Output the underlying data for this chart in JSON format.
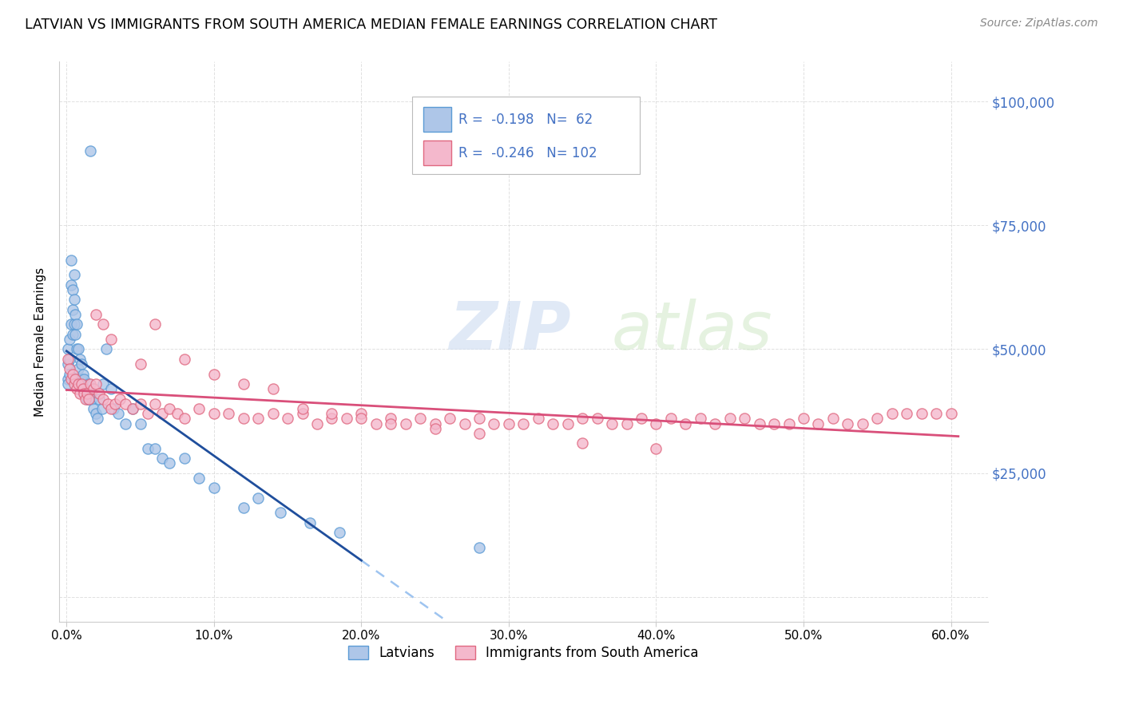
{
  "title": "LATVIAN VS IMMIGRANTS FROM SOUTH AMERICA MEDIAN FEMALE EARNINGS CORRELATION CHART",
  "source": "Source: ZipAtlas.com",
  "ylabel": "Median Female Earnings",
  "x_ticks": [
    0.0,
    0.1,
    0.2,
    0.3,
    0.4,
    0.5,
    0.6
  ],
  "x_tick_labels": [
    "0.0%",
    "10.0%",
    "20.0%",
    "30.0%",
    "40.0%",
    "50.0%",
    "60.0%"
  ],
  "y_ticks": [
    0,
    25000,
    50000,
    75000,
    100000
  ],
  "y_tick_labels": [
    "",
    "$25,000",
    "$50,000",
    "$75,000",
    "$100,000"
  ],
  "xlim": [
    -0.005,
    0.625
  ],
  "ylim": [
    -5000,
    108000
  ],
  "legend_latvians": "Latvians",
  "legend_south_america": "Immigrants from South America",
  "legend_r1_val": "-0.198",
  "legend_n1_val": "62",
  "legend_r2_val": "-0.246",
  "legend_n2_val": "102",
  "latvian_color": "#aec6e8",
  "latvian_edge_color": "#5b9bd5",
  "south_america_color": "#f4b8cc",
  "south_america_edge_color": "#e06880",
  "trend_latvian_color": "#1f4e9c",
  "trend_south_america_color": "#d94f7a",
  "trend_latvian_dashed_color": "#9ec4f0",
  "watermark_zip": "ZIP",
  "watermark_atlas": "atlas",
  "watermark_color_zip": "#c8d8f0",
  "watermark_color_atlas": "#d0e8c8",
  "background_color": "#ffffff",
  "grid_color": "#cccccc",
  "right_tick_color": "#4472c4",
  "latvian_x": [
    0.001,
    0.001,
    0.001,
    0.001,
    0.002,
    0.002,
    0.002,
    0.003,
    0.003,
    0.003,
    0.004,
    0.004,
    0.004,
    0.005,
    0.005,
    0.005,
    0.006,
    0.006,
    0.007,
    0.007,
    0.008,
    0.008,
    0.009,
    0.009,
    0.01,
    0.01,
    0.011,
    0.011,
    0.012,
    0.012,
    0.013,
    0.014,
    0.015,
    0.015,
    0.016,
    0.017,
    0.018,
    0.02,
    0.021,
    0.022,
    0.024,
    0.025,
    0.027,
    0.03,
    0.032,
    0.035,
    0.04,
    0.045,
    0.05,
    0.055,
    0.06,
    0.065,
    0.07,
    0.08,
    0.09,
    0.1,
    0.12,
    0.13,
    0.145,
    0.165,
    0.185,
    0.28
  ],
  "latvian_y": [
    50000,
    47000,
    44000,
    43000,
    52000,
    48000,
    45000,
    68000,
    63000,
    55000,
    62000,
    58000,
    53000,
    65000,
    60000,
    55000,
    57000,
    53000,
    55000,
    50000,
    50000,
    46000,
    48000,
    44000,
    47000,
    44000,
    45000,
    42000,
    44000,
    41000,
    42000,
    40000,
    43000,
    40000,
    41000,
    40000,
    38000,
    37000,
    36000,
    40000,
    38000,
    43000,
    50000,
    42000,
    38000,
    37000,
    35000,
    38000,
    35000,
    30000,
    30000,
    28000,
    27000,
    28000,
    24000,
    22000,
    18000,
    20000,
    17000,
    15000,
    13000,
    10000
  ],
  "latvian_y_outlier": [
    90000
  ],
  "latvian_x_outlier": [
    0.016
  ],
  "south_america_x": [
    0.001,
    0.002,
    0.003,
    0.004,
    0.005,
    0.006,
    0.007,
    0.008,
    0.009,
    0.01,
    0.011,
    0.012,
    0.013,
    0.014,
    0.015,
    0.016,
    0.018,
    0.02,
    0.022,
    0.025,
    0.028,
    0.03,
    0.033,
    0.036,
    0.04,
    0.045,
    0.05,
    0.055,
    0.06,
    0.065,
    0.07,
    0.075,
    0.08,
    0.09,
    0.1,
    0.11,
    0.12,
    0.13,
    0.14,
    0.15,
    0.16,
    0.17,
    0.18,
    0.19,
    0.2,
    0.21,
    0.22,
    0.23,
    0.24,
    0.25,
    0.26,
    0.27,
    0.28,
    0.29,
    0.3,
    0.31,
    0.32,
    0.33,
    0.34,
    0.35,
    0.36,
    0.37,
    0.38,
    0.39,
    0.4,
    0.41,
    0.42,
    0.43,
    0.44,
    0.45,
    0.46,
    0.47,
    0.48,
    0.49,
    0.5,
    0.51,
    0.52,
    0.53,
    0.54,
    0.55,
    0.56,
    0.57,
    0.58,
    0.59,
    0.6,
    0.02,
    0.025,
    0.03,
    0.05,
    0.06,
    0.08,
    0.1,
    0.12,
    0.14,
    0.16,
    0.18,
    0.2,
    0.22,
    0.25,
    0.28,
    0.35,
    0.4
  ],
  "south_america_y": [
    48000,
    46000,
    44000,
    45000,
    43000,
    44000,
    42000,
    43000,
    41000,
    43000,
    42000,
    41000,
    40000,
    41000,
    40000,
    43000,
    42000,
    43000,
    41000,
    40000,
    39000,
    38000,
    39000,
    40000,
    39000,
    38000,
    39000,
    37000,
    39000,
    37000,
    38000,
    37000,
    36000,
    38000,
    37000,
    37000,
    36000,
    36000,
    37000,
    36000,
    37000,
    35000,
    36000,
    36000,
    37000,
    35000,
    36000,
    35000,
    36000,
    35000,
    36000,
    35000,
    36000,
    35000,
    35000,
    35000,
    36000,
    35000,
    35000,
    36000,
    36000,
    35000,
    35000,
    36000,
    35000,
    36000,
    35000,
    36000,
    35000,
    36000,
    36000,
    35000,
    35000,
    35000,
    36000,
    35000,
    36000,
    35000,
    35000,
    36000,
    37000,
    37000,
    37000,
    37000,
    37000,
    57000,
    55000,
    52000,
    47000,
    55000,
    48000,
    45000,
    43000,
    42000,
    38000,
    37000,
    36000,
    35000,
    34000,
    33000,
    31000,
    30000
  ]
}
